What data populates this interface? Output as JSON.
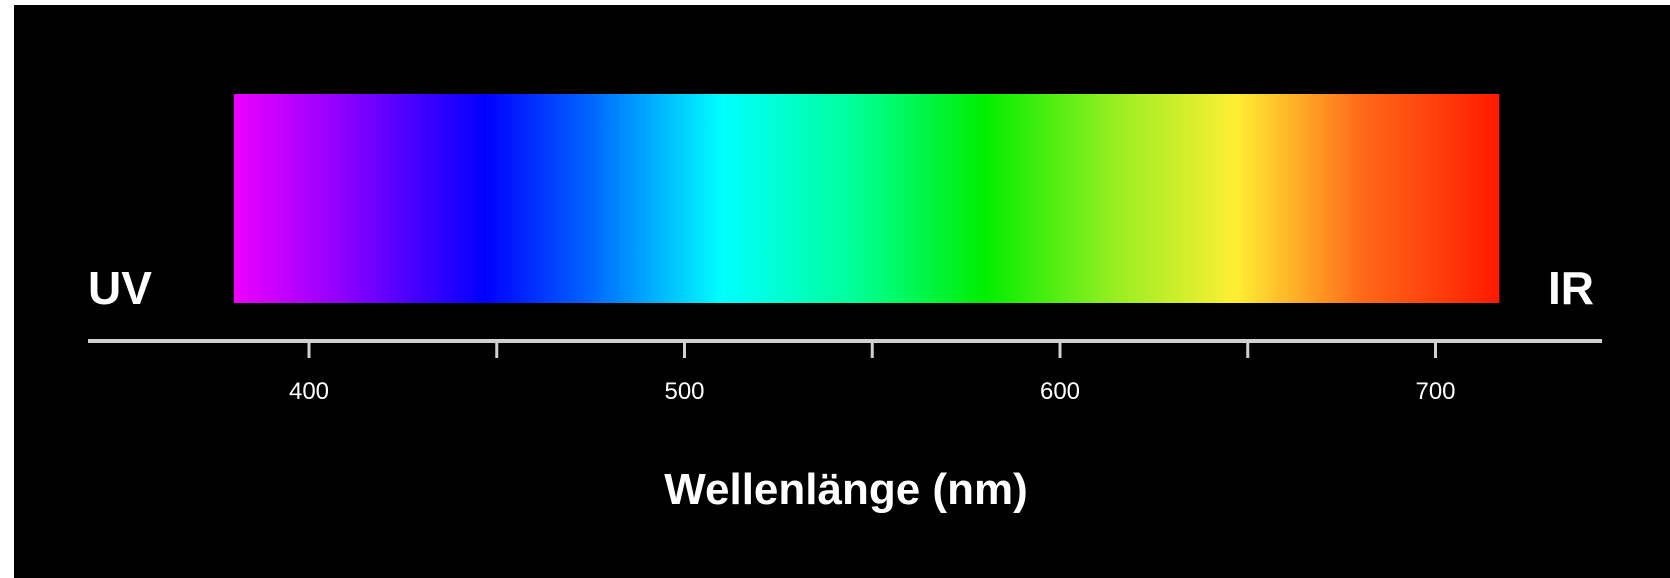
{
  "labels": {
    "left": "UV",
    "right": "IR",
    "axis_title": "Wellenlänge (nm)"
  },
  "axis": {
    "min_nm": 342,
    "max_nm": 743,
    "tick_labels": [
      "400",
      "500",
      "600",
      "700"
    ],
    "major_ticks_nm": [
      400,
      500,
      600,
      700
    ],
    "minor_ticks_nm": [
      450,
      550,
      650
    ]
  },
  "spectrum": {
    "range_nm": [
      380,
      717
    ],
    "stops": [
      {
        "nm": 380,
        "color": "#ee00ff"
      },
      {
        "nm": 410,
        "color": "#8a00ff"
      },
      {
        "nm": 447,
        "color": "#0000ff"
      },
      {
        "nm": 475,
        "color": "#0066ff"
      },
      {
        "nm": 510,
        "color": "#00ffff"
      },
      {
        "nm": 545,
        "color": "#00ff99"
      },
      {
        "nm": 580,
        "color": "#00ee00"
      },
      {
        "nm": 615,
        "color": "#99ee22"
      },
      {
        "nm": 647,
        "color": "#ffee33"
      },
      {
        "nm": 680,
        "color": "#ff6a1a"
      },
      {
        "nm": 717,
        "color": "#ff1a00"
      }
    ]
  },
  "colors": {
    "background": "#000000",
    "axis": "#d0d0d0",
    "text": "#ffffff"
  }
}
